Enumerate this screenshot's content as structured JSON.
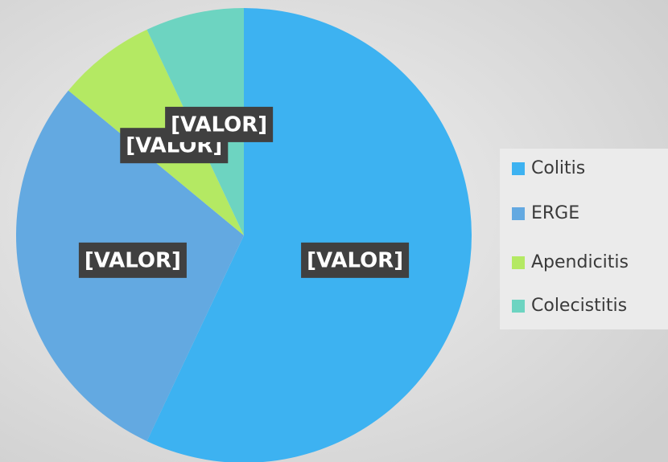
{
  "chart_data": {
    "type": "pie",
    "categories": [
      "Colitis",
      "ERGE",
      "Apendicitis",
      "Colecistitis"
    ],
    "values": [
      57,
      29,
      7,
      7
    ],
    "value_labels": [
      "[VALOR]",
      "[VALOR]",
      "[VALOR]",
      "[VALOR]"
    ],
    "colors": [
      "#3db2f1",
      "#63a9e1",
      "#b4e963",
      "#6dd4c1"
    ],
    "legend": "right"
  }
}
